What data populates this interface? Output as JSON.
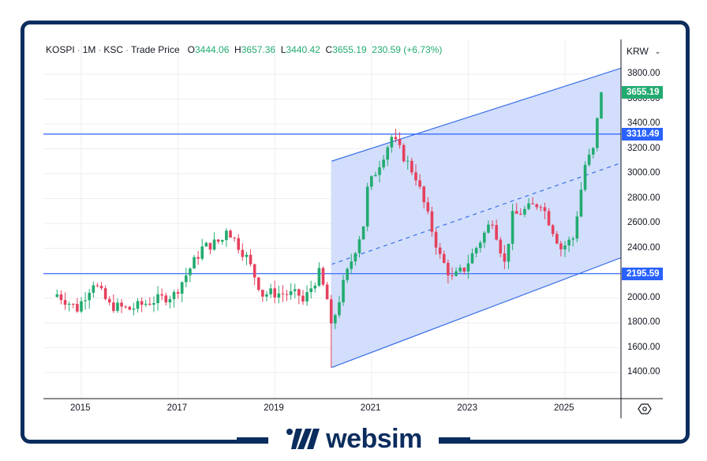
{
  "legend": {
    "symbol": "KOSPI",
    "interval": "1M",
    "exchange": "KSC",
    "price_type": "Trade Price",
    "open_label": "O",
    "open": "3444.06",
    "high_label": "H",
    "high": "3657.36",
    "low_label": "L",
    "low": "3440.42",
    "close_label": "C",
    "close": "3655.19",
    "change": "230.59 (+6.73%)"
  },
  "currency_selector": {
    "value": "KRW"
  },
  "badges": {
    "last_price": {
      "value": "3655.19",
      "color": "#22ab70"
    },
    "hline_upper": {
      "value": "3318.49",
      "color": "#2962ff"
    },
    "hline_lower": {
      "value": "2195.59",
      "color": "#2962ff"
    }
  },
  "brand": {
    "name": "websim"
  },
  "colors": {
    "up": "#22ab70",
    "down": "#e5415e",
    "channel_fill": "#d0dcfb",
    "channel_line": "#3a6ee8",
    "hline": "#2962ff",
    "frame": "#0b2d5e",
    "grid": "#eeeeee"
  },
  "chart_data": {
    "type": "candlestick",
    "title": "KOSPI · 1M · KSC · Trade Price",
    "xlabel": "",
    "ylabel": "KRW",
    "x_tick_labels": [
      "2015",
      "2017",
      "2019",
      "2021",
      "2023",
      "2025"
    ],
    "y_tick_labels": [
      "1400.00",
      "1600.00",
      "1800.00",
      "2000.00",
      "2200.00",
      "2400.00",
      "2600.00",
      "2800.00",
      "3000.00",
      "3200.00",
      "3400.00",
      "3600.00",
      "3800.00"
    ],
    "ylim": [
      1300,
      3900
    ],
    "grid": true,
    "last_candle": {
      "open": 3444.06,
      "high": 3657.36,
      "low": 3440.42,
      "close": 3655.19,
      "change": 230.59,
      "change_pct": 6.73
    },
    "horizontal_lines": [
      3318.49,
      2195.59
    ],
    "regression_channel": {
      "start": "2020-03",
      "end": "2025-10+",
      "upper": [
        3100,
        3930
      ],
      "middle": [
        2270,
        3250
      ],
      "lower": [
        1440,
        2420
      ]
    },
    "approx_monthly_closes": {
      "2014-07": 2030,
      "2014-12": 1915,
      "2015-04": 2130,
      "2015-08": 1940,
      "2016-01": 1910,
      "2016-06": 1970,
      "2016-12": 2026,
      "2017-07": 2400,
      "2017-12": 2467,
      "2018-01": 2566,
      "2018-06": 2326,
      "2018-10": 2029,
      "2018-12": 2041,
      "2019-07": 2024,
      "2019-08": 1967,
      "2019-12": 2197,
      "2020-02": 1987,
      "2020-03": 1754,
      "2020-06": 2108,
      "2020-11": 2591,
      "2020-12": 2873,
      "2021-06": 3296,
      "2021-12": 2977,
      "2022-06": 2332,
      "2022-09": 2155,
      "2022-12": 2236,
      "2023-07": 2632,
      "2023-10": 2277,
      "2023-12": 2655,
      "2024-07": 2770,
      "2024-12": 2399,
      "2025-03": 2481,
      "2025-06": 3071,
      "2025-08": 3186,
      "2025-09": 3424,
      "2025-10": 3655.19
    }
  }
}
